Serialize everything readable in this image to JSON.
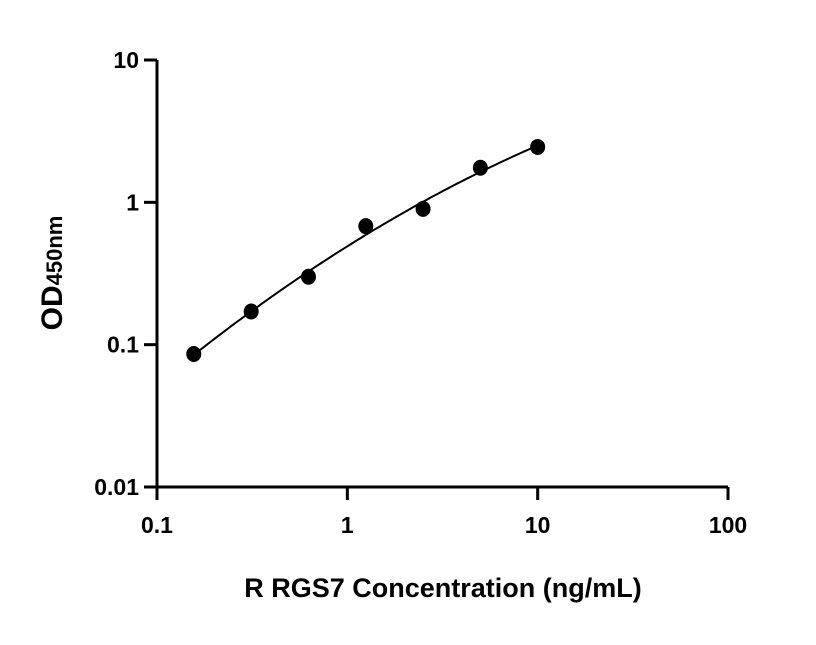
{
  "chart_data": {
    "type": "scatter",
    "title": "",
    "xlabel": "R RGS7 Concentration (ng/mL)",
    "ylabel_main": "OD",
    "ylabel_sub": "450nm",
    "x_scale": "log",
    "y_scale": "log",
    "xlim": [
      0.1,
      100
    ],
    "ylim": [
      0.01,
      10
    ],
    "x_ticks": [
      0.1,
      1,
      10,
      100
    ],
    "x_tick_labels": [
      "0.1",
      "1",
      "10",
      "100"
    ],
    "y_ticks": [
      0.01,
      0.1,
      1,
      10
    ],
    "y_tick_labels": [
      "0.01",
      "0.1",
      "1",
      "10"
    ],
    "grid": false,
    "legend": "none",
    "fit_curve": true,
    "colors": {
      "points": "#000000",
      "curve": "#000000"
    },
    "x": [
      0.156,
      0.3125,
      0.625,
      1.25,
      2.5,
      5,
      10
    ],
    "y": [
      0.086,
      0.171,
      0.3,
      0.68,
      0.9,
      1.75,
      2.45
    ]
  }
}
